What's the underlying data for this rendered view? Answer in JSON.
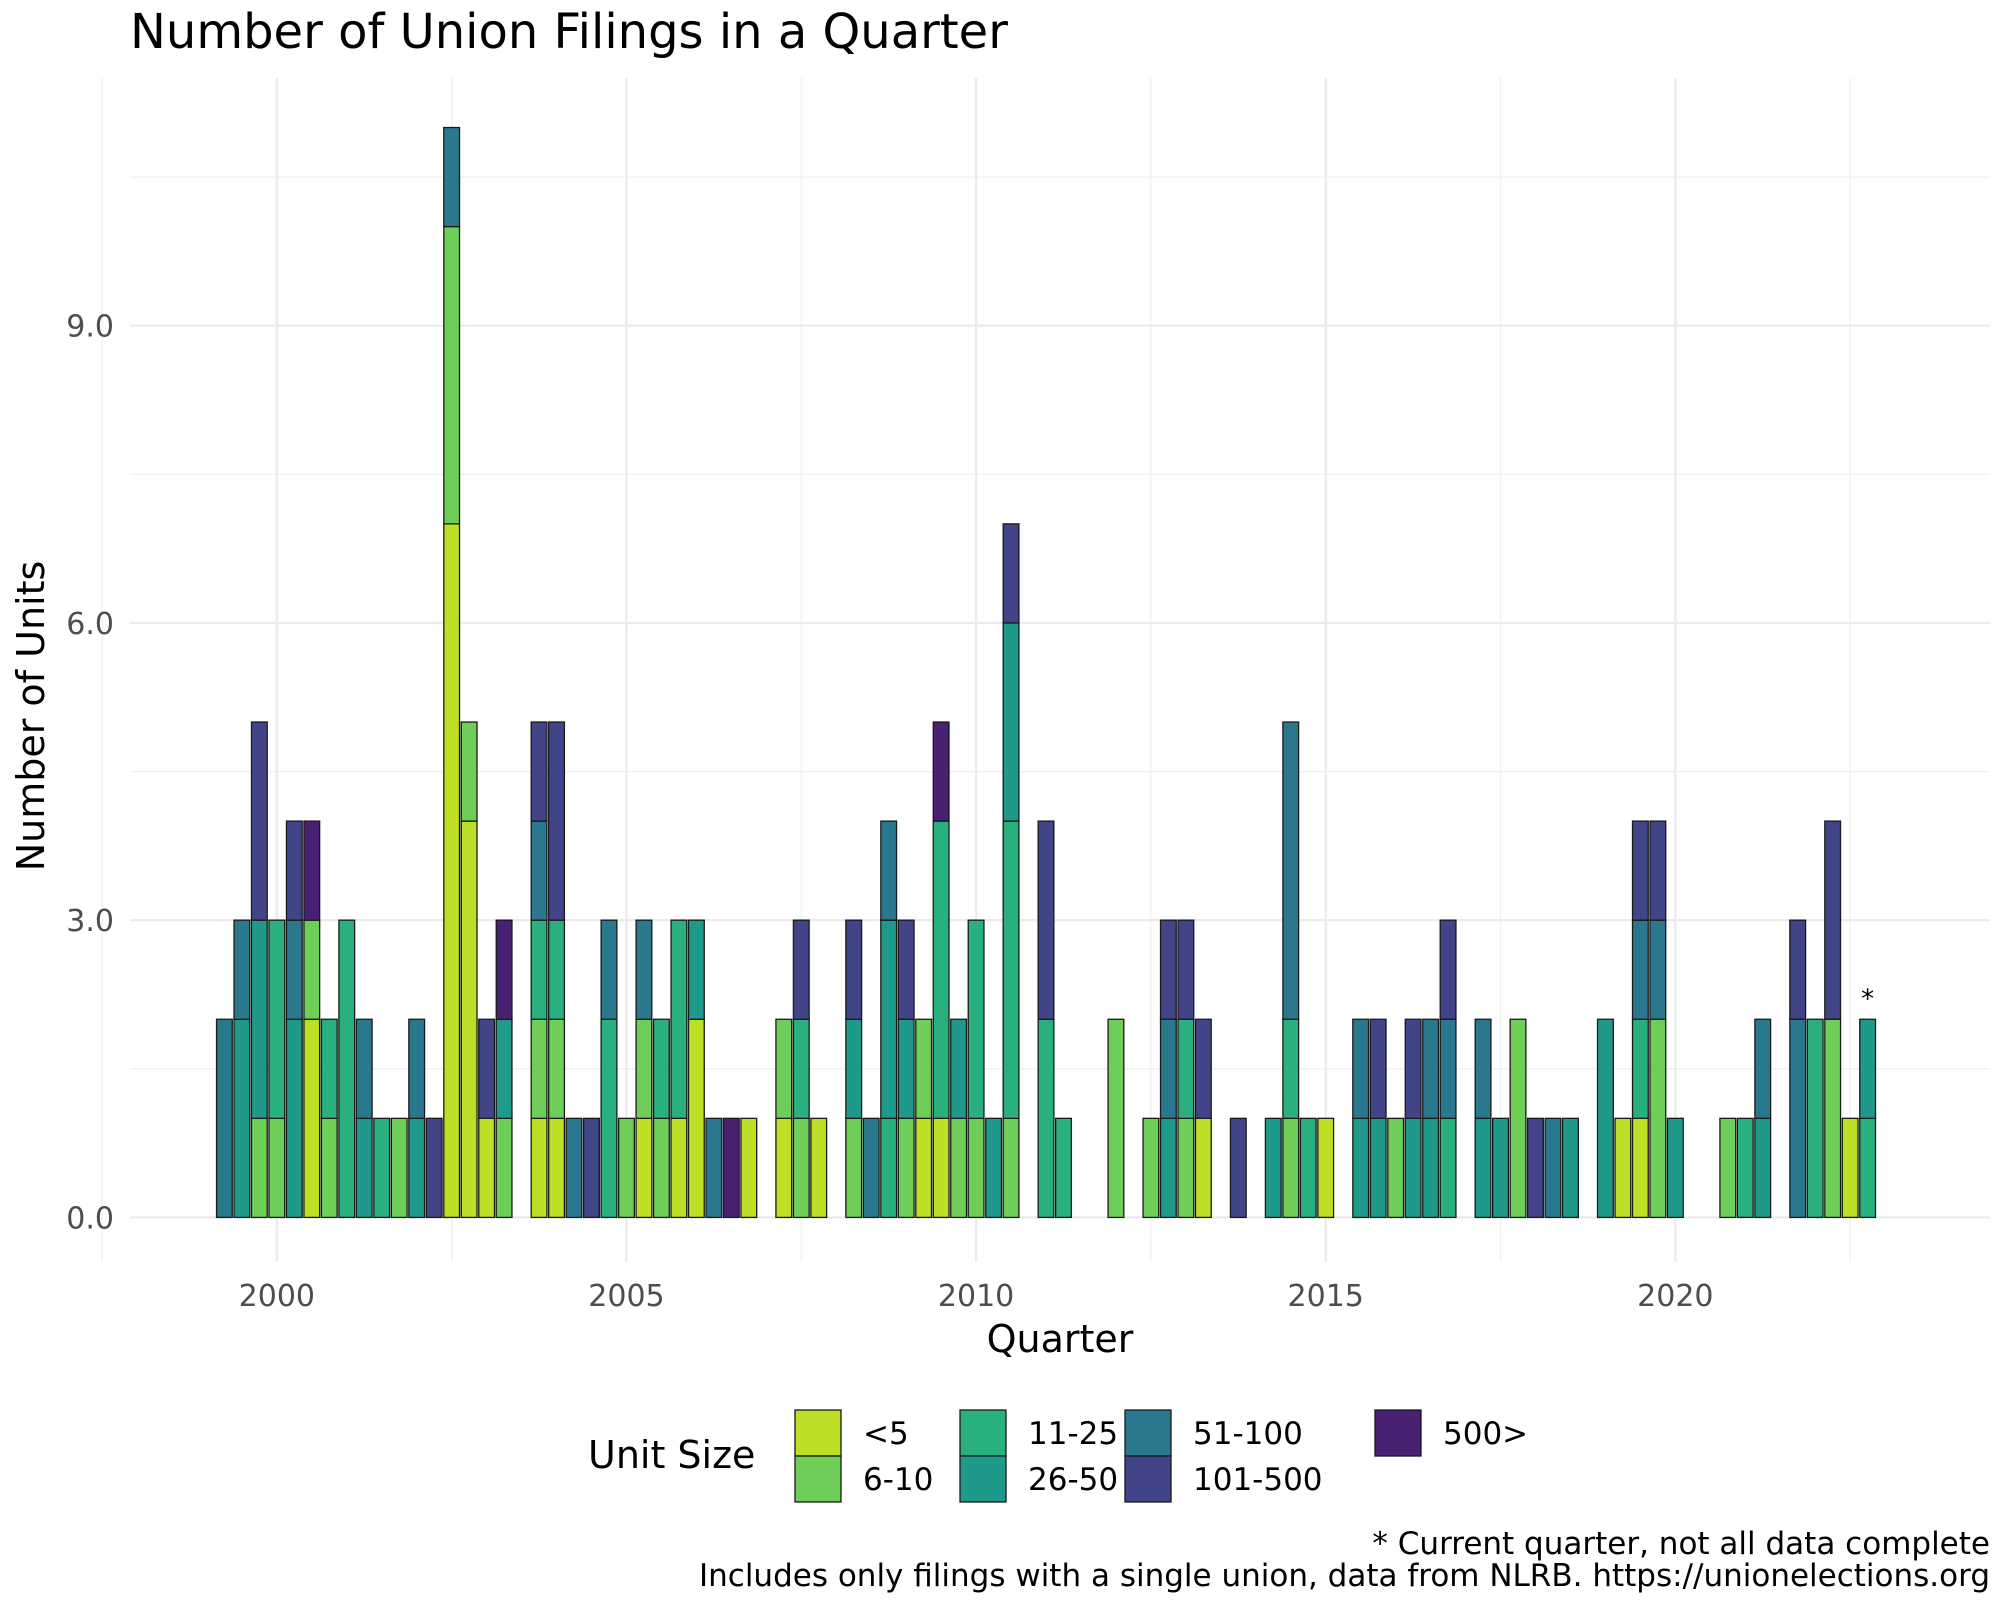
{
  "chart_data": {
    "type": "bar",
    "stacked": true,
    "title": "Number of Union Filings in a Quarter",
    "xlabel": "Quarter",
    "ylabel": "Number of Units",
    "x_tick_labels": [
      "2000",
      "2005",
      "2010",
      "2015",
      "2020"
    ],
    "x_tick_values": [
      2000,
      2005,
      2010,
      2015,
      2020
    ],
    "y_tick_labels": [
      "0.0",
      "3.0",
      "6.0",
      "9.0"
    ],
    "y_tick_values": [
      0,
      3,
      6,
      9
    ],
    "xlim": [
      1997.9,
      2024.5
    ],
    "ylim": [
      -0.45,
      11.5
    ],
    "grid": true,
    "legend": {
      "title": "Unit Size",
      "position": "bottom",
      "items": [
        {
          "label": "<5",
          "color": "#bddf26"
        },
        {
          "label": "6-10",
          "color": "#6ece58"
        },
        {
          "label": "11-25",
          "color": "#2ab07f"
        },
        {
          "label": "26-50",
          "color": "#1f9a8a"
        },
        {
          "label": "51-100",
          "color": "#2a788e"
        },
        {
          "label": "101-500",
          "color": "#414487"
        },
        {
          "label": "500>",
          "color": "#482173"
        }
      ]
    },
    "bars": [
      {
        "x": 1999.25,
        "segments": [
          {
            "size": "51-100",
            "value": 2
          }
        ]
      },
      {
        "x": 1999.5,
        "segments": [
          {
            "size": "26-50",
            "value": 2
          },
          {
            "size": "51-100",
            "value": 1
          }
        ]
      },
      {
        "x": 1999.75,
        "segments": [
          {
            "size": "6-10",
            "value": 1
          },
          {
            "size": "26-50",
            "value": 2
          },
          {
            "size": "101-500",
            "value": 2
          }
        ]
      },
      {
        "x": 2000.0,
        "segments": [
          {
            "size": "6-10",
            "value": 1
          },
          {
            "size": "11-25",
            "value": 2
          }
        ]
      },
      {
        "x": 2000.25,
        "segments": [
          {
            "size": "26-50",
            "value": 2
          },
          {
            "size": "51-100",
            "value": 1
          },
          {
            "size": "101-500",
            "value": 1
          }
        ]
      },
      {
        "x": 2000.5,
        "segments": [
          {
            "size": "<5",
            "value": 2
          },
          {
            "size": "6-10",
            "value": 1
          },
          {
            "size": "500>",
            "value": 1
          }
        ]
      },
      {
        "x": 2000.75,
        "segments": [
          {
            "size": "6-10",
            "value": 1
          },
          {
            "size": "11-25",
            "value": 1
          }
        ]
      },
      {
        "x": 2001.0,
        "segments": [
          {
            "size": "11-25",
            "value": 3
          }
        ]
      },
      {
        "x": 2001.25,
        "segments": [
          {
            "size": "26-50",
            "value": 1
          },
          {
            "size": "51-100",
            "value": 1
          }
        ]
      },
      {
        "x": 2001.5,
        "segments": [
          {
            "size": "11-25",
            "value": 1
          }
        ]
      },
      {
        "x": 2001.75,
        "segments": [
          {
            "size": "6-10",
            "value": 1
          }
        ]
      },
      {
        "x": 2002.0,
        "segments": [
          {
            "size": "26-50",
            "value": 1
          },
          {
            "size": "51-100",
            "value": 1
          }
        ]
      },
      {
        "x": 2002.25,
        "segments": [
          {
            "size": "101-500",
            "value": 1
          }
        ]
      },
      {
        "x": 2002.5,
        "segments": [
          {
            "size": "<5",
            "value": 7
          },
          {
            "size": "6-10",
            "value": 3
          },
          {
            "size": "51-100",
            "value": 1
          }
        ]
      },
      {
        "x": 2002.75,
        "segments": [
          {
            "size": "<5",
            "value": 4
          },
          {
            "size": "6-10",
            "value": 1
          }
        ]
      },
      {
        "x": 2003.0,
        "segments": [
          {
            "size": "<5",
            "value": 1
          },
          {
            "size": "101-500",
            "value": 1
          }
        ]
      },
      {
        "x": 2003.25,
        "segments": [
          {
            "size": "6-10",
            "value": 1
          },
          {
            "size": "26-50",
            "value": 1
          },
          {
            "size": "500>",
            "value": 1
          }
        ]
      },
      {
        "x": 2003.75,
        "segments": [
          {
            "size": "<5",
            "value": 1
          },
          {
            "size": "6-10",
            "value": 1
          },
          {
            "size": "11-25",
            "value": 1
          },
          {
            "size": "51-100",
            "value": 1
          },
          {
            "size": "101-500",
            "value": 1
          }
        ]
      },
      {
        "x": 2004.0,
        "segments": [
          {
            "size": "<5",
            "value": 1
          },
          {
            "size": "6-10",
            "value": 1
          },
          {
            "size": "11-25",
            "value": 1
          },
          {
            "size": "101-500",
            "value": 2
          }
        ]
      },
      {
        "x": 2004.25,
        "segments": [
          {
            "size": "51-100",
            "value": 1
          }
        ]
      },
      {
        "x": 2004.5,
        "segments": [
          {
            "size": "101-500",
            "value": 1
          }
        ]
      },
      {
        "x": 2004.75,
        "segments": [
          {
            "size": "11-25",
            "value": 2
          },
          {
            "size": "51-100",
            "value": 1
          }
        ]
      },
      {
        "x": 2005.0,
        "segments": [
          {
            "size": "6-10",
            "value": 1
          }
        ]
      },
      {
        "x": 2005.25,
        "segments": [
          {
            "size": "<5",
            "value": 1
          },
          {
            "size": "6-10",
            "value": 1
          },
          {
            "size": "51-100",
            "value": 1
          }
        ]
      },
      {
        "x": 2005.5,
        "segments": [
          {
            "size": "6-10",
            "value": 1
          },
          {
            "size": "11-25",
            "value": 1
          }
        ]
      },
      {
        "x": 2005.75,
        "segments": [
          {
            "size": "<5",
            "value": 1
          },
          {
            "size": "11-25",
            "value": 2
          }
        ]
      },
      {
        "x": 2006.0,
        "segments": [
          {
            "size": "<5",
            "value": 2
          },
          {
            "size": "26-50",
            "value": 1
          }
        ]
      },
      {
        "x": 2006.25,
        "segments": [
          {
            "size": "51-100",
            "value": 1
          }
        ]
      },
      {
        "x": 2006.5,
        "segments": [
          {
            "size": "500>",
            "value": 1
          }
        ]
      },
      {
        "x": 2006.75,
        "segments": [
          {
            "size": "<5",
            "value": 1
          }
        ]
      },
      {
        "x": 2007.25,
        "segments": [
          {
            "size": "<5",
            "value": 1
          },
          {
            "size": "6-10",
            "value": 1
          }
        ]
      },
      {
        "x": 2007.5,
        "segments": [
          {
            "size": "6-10",
            "value": 1
          },
          {
            "size": "11-25",
            "value": 1
          },
          {
            "size": "101-500",
            "value": 1
          }
        ]
      },
      {
        "x": 2007.75,
        "segments": [
          {
            "size": "<5",
            "value": 1
          }
        ]
      },
      {
        "x": 2008.25,
        "segments": [
          {
            "size": "6-10",
            "value": 1
          },
          {
            "size": "26-50",
            "value": 1
          },
          {
            "size": "101-500",
            "value": 1
          }
        ]
      },
      {
        "x": 2008.5,
        "segments": [
          {
            "size": "51-100",
            "value": 1
          }
        ]
      },
      {
        "x": 2008.75,
        "segments": [
          {
            "size": "11-25",
            "value": 1
          },
          {
            "size": "26-50",
            "value": 2
          },
          {
            "size": "51-100",
            "value": 1
          }
        ]
      },
      {
        "x": 2009.0,
        "segments": [
          {
            "size": "6-10",
            "value": 1
          },
          {
            "size": "26-50",
            "value": 1
          },
          {
            "size": "101-500",
            "value": 1
          }
        ]
      },
      {
        "x": 2009.25,
        "segments": [
          {
            "size": "<5",
            "value": 1
          },
          {
            "size": "6-10",
            "value": 1
          }
        ]
      },
      {
        "x": 2009.5,
        "segments": [
          {
            "size": "<5",
            "value": 1
          },
          {
            "size": "11-25",
            "value": 3
          },
          {
            "size": "500>",
            "value": 1
          }
        ]
      },
      {
        "x": 2009.75,
        "segments": [
          {
            "size": "6-10",
            "value": 1
          },
          {
            "size": "26-50",
            "value": 1
          }
        ]
      },
      {
        "x": 2010.0,
        "segments": [
          {
            "size": "6-10",
            "value": 1
          },
          {
            "size": "11-25",
            "value": 2
          }
        ]
      },
      {
        "x": 2010.25,
        "segments": [
          {
            "size": "26-50",
            "value": 1
          }
        ]
      },
      {
        "x": 2010.5,
        "segments": [
          {
            "size": "6-10",
            "value": 1
          },
          {
            "size": "11-25",
            "value": 3
          },
          {
            "size": "26-50",
            "value": 2
          },
          {
            "size": "101-500",
            "value": 1
          }
        ]
      },
      {
        "x": 2011.0,
        "segments": [
          {
            "size": "11-25",
            "value": 2
          },
          {
            "size": "101-500",
            "value": 2
          }
        ]
      },
      {
        "x": 2011.25,
        "segments": [
          {
            "size": "11-25",
            "value": 1
          }
        ]
      },
      {
        "x": 2012.0,
        "segments": [
          {
            "size": "6-10",
            "value": 2
          }
        ]
      },
      {
        "x": 2012.5,
        "segments": [
          {
            "size": "6-10",
            "value": 1
          }
        ]
      },
      {
        "x": 2012.75,
        "segments": [
          {
            "size": "26-50",
            "value": 1
          },
          {
            "size": "51-100",
            "value": 1
          },
          {
            "size": "101-500",
            "value": 1
          }
        ]
      },
      {
        "x": 2013.0,
        "segments": [
          {
            "size": "6-10",
            "value": 1
          },
          {
            "size": "11-25",
            "value": 1
          },
          {
            "size": "101-500",
            "value": 1
          }
        ]
      },
      {
        "x": 2013.25,
        "segments": [
          {
            "size": "<5",
            "value": 1
          },
          {
            "size": "101-500",
            "value": 1
          }
        ]
      },
      {
        "x": 2013.75,
        "segments": [
          {
            "size": "101-500",
            "value": 1
          }
        ]
      },
      {
        "x": 2014.25,
        "segments": [
          {
            "size": "26-50",
            "value": 1
          }
        ]
      },
      {
        "x": 2014.5,
        "segments": [
          {
            "size": "6-10",
            "value": 1
          },
          {
            "size": "11-25",
            "value": 1
          },
          {
            "size": "51-100",
            "value": 3
          }
        ]
      },
      {
        "x": 2014.75,
        "segments": [
          {
            "size": "11-25",
            "value": 1
          }
        ]
      },
      {
        "x": 2015.0,
        "segments": [
          {
            "size": "<5",
            "value": 1
          }
        ]
      },
      {
        "x": 2015.5,
        "segments": [
          {
            "size": "26-50",
            "value": 1
          },
          {
            "size": "51-100",
            "value": 1
          }
        ]
      },
      {
        "x": 2015.75,
        "segments": [
          {
            "size": "26-50",
            "value": 1
          },
          {
            "size": "101-500",
            "value": 1
          }
        ]
      },
      {
        "x": 2016.0,
        "segments": [
          {
            "size": "6-10",
            "value": 1
          }
        ]
      },
      {
        "x": 2016.25,
        "segments": [
          {
            "size": "26-50",
            "value": 1
          },
          {
            "size": "101-500",
            "value": 1
          }
        ]
      },
      {
        "x": 2016.5,
        "segments": [
          {
            "size": "26-50",
            "value": 1
          },
          {
            "size": "51-100",
            "value": 1
          }
        ]
      },
      {
        "x": 2016.75,
        "segments": [
          {
            "size": "11-25",
            "value": 1
          },
          {
            "size": "51-100",
            "value": 1
          },
          {
            "size": "101-500",
            "value": 1
          }
        ]
      },
      {
        "x": 2017.25,
        "segments": [
          {
            "size": "26-50",
            "value": 1
          },
          {
            "size": "51-100",
            "value": 1
          }
        ]
      },
      {
        "x": 2017.5,
        "segments": [
          {
            "size": "26-50",
            "value": 1
          }
        ]
      },
      {
        "x": 2017.75,
        "segments": [
          {
            "size": "6-10",
            "value": 2
          }
        ]
      },
      {
        "x": 2018.0,
        "segments": [
          {
            "size": "101-500",
            "value": 1
          }
        ]
      },
      {
        "x": 2018.25,
        "segments": [
          {
            "size": "51-100",
            "value": 1
          }
        ]
      },
      {
        "x": 2018.5,
        "segments": [
          {
            "size": "26-50",
            "value": 1
          }
        ]
      },
      {
        "x": 2019.0,
        "segments": [
          {
            "size": "26-50",
            "value": 2
          }
        ]
      },
      {
        "x": 2019.25,
        "segments": [
          {
            "size": "<5",
            "value": 1
          }
        ]
      },
      {
        "x": 2019.5,
        "segments": [
          {
            "size": "<5",
            "value": 1
          },
          {
            "size": "11-25",
            "value": 1
          },
          {
            "size": "51-100",
            "value": 1
          },
          {
            "size": "101-500",
            "value": 1
          }
        ]
      },
      {
        "x": 2019.75,
        "segments": [
          {
            "size": "6-10",
            "value": 2
          },
          {
            "size": "51-100",
            "value": 1
          },
          {
            "size": "101-500",
            "value": 1
          }
        ]
      },
      {
        "x": 2020.0,
        "segments": [
          {
            "size": "26-50",
            "value": 1
          }
        ]
      },
      {
        "x": 2020.75,
        "segments": [
          {
            "size": "6-10",
            "value": 1
          }
        ]
      },
      {
        "x": 2021.0,
        "segments": [
          {
            "size": "11-25",
            "value": 1
          }
        ]
      },
      {
        "x": 2021.25,
        "segments": [
          {
            "size": "26-50",
            "value": 1
          },
          {
            "size": "51-100",
            "value": 1
          }
        ]
      },
      {
        "x": 2021.75,
        "segments": [
          {
            "size": "51-100",
            "value": 2
          },
          {
            "size": "101-500",
            "value": 1
          }
        ]
      },
      {
        "x": 2022.0,
        "segments": [
          {
            "size": "11-25",
            "value": 2
          }
        ]
      },
      {
        "x": 2022.25,
        "segments": [
          {
            "size": "6-10",
            "value": 2
          },
          {
            "size": "101-500",
            "value": 2
          }
        ]
      },
      {
        "x": 2022.5,
        "segments": [
          {
            "size": "<5",
            "value": 1
          }
        ]
      },
      {
        "x": 2022.75,
        "segments": [
          {
            "size": "11-25",
            "value": 1
          },
          {
            "size": "26-50",
            "value": 1
          }
        ],
        "annotation": "*"
      }
    ],
    "footnote": "* Current quarter, not all data complete",
    "caption": "Includes only filings with a single union, data from NLRB. https://unionelections.org"
  }
}
